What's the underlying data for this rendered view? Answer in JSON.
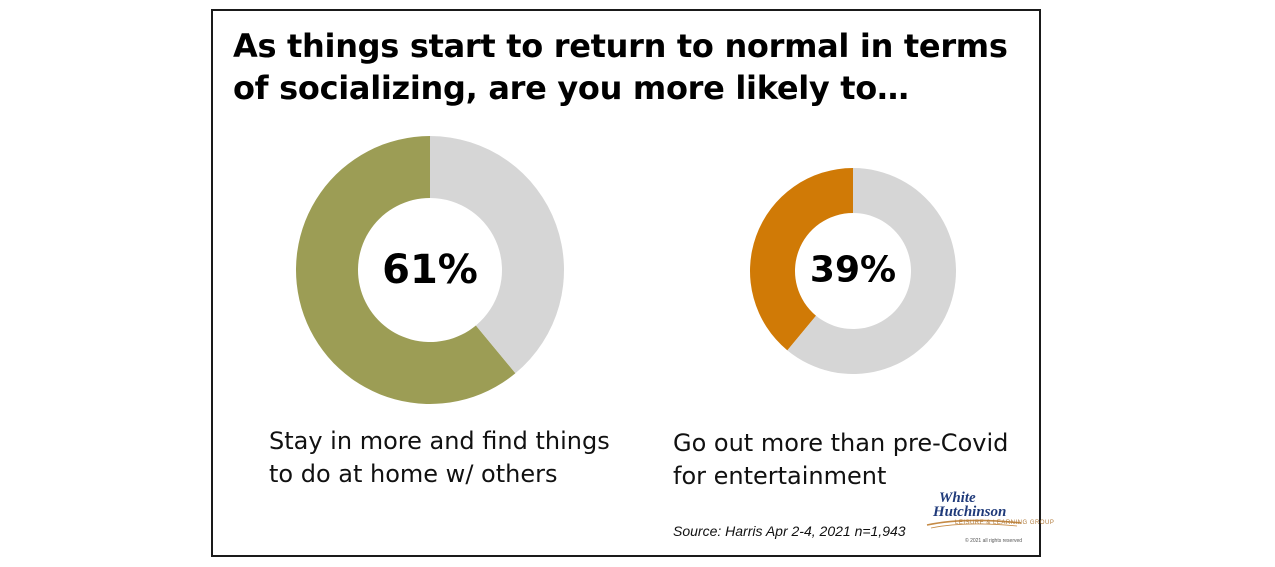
{
  "title": "As things start to return to normal in terms of socializing, are you more likely to…",
  "chart_data": [
    {
      "type": "pie",
      "label": "Stay in more and find things to do at home w/ others",
      "value_label": "61%",
      "values": [
        61,
        39
      ],
      "colors": [
        "#9c9d55",
        "#d6d6d6"
      ]
    },
    {
      "type": "pie",
      "label": "Go out more than pre-Covid for entertainment",
      "value_label": "39%",
      "values": [
        39,
        61
      ],
      "colors": [
        "#d07a06",
        "#d6d6d6"
      ]
    }
  ],
  "source": "Source: Harris Apr 2-4, 2021 n=1,943",
  "logo": {
    "line1": "White",
    "line2": "Hutchinson",
    "tagline": "LEISURE & LEARNING GROUP",
    "copyright": "© 2021 all rights reserved"
  },
  "colors": {
    "accent_olive": "#9c9d55",
    "accent_orange": "#d07a06",
    "remainder_gray": "#d6d6d6"
  }
}
